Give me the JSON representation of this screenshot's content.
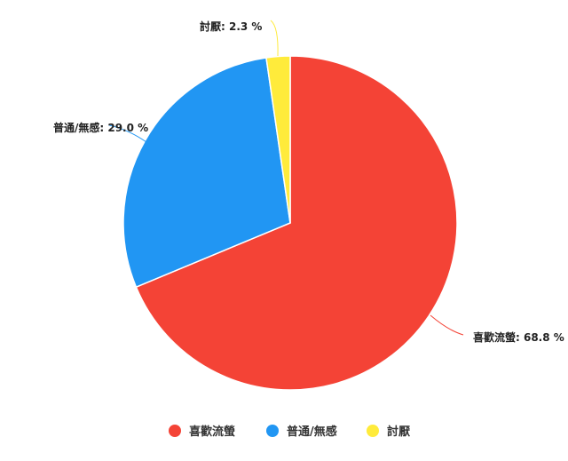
{
  "chart_data": {
    "type": "pie",
    "categories": [
      "喜歡流螢",
      "普通/無感",
      "討厭"
    ],
    "values": [
      68.8,
      29.0,
      2.3
    ],
    "data_labels": [
      "喜歡流螢: 68.8 %",
      "普通/無感: 29.0 %",
      "討厭: 2.3 %"
    ],
    "colors": [
      "#F44336",
      "#2196F3",
      "#FFEB3B"
    ],
    "start_angle": "top, clockwise",
    "legend_position": "bottom"
  }
}
